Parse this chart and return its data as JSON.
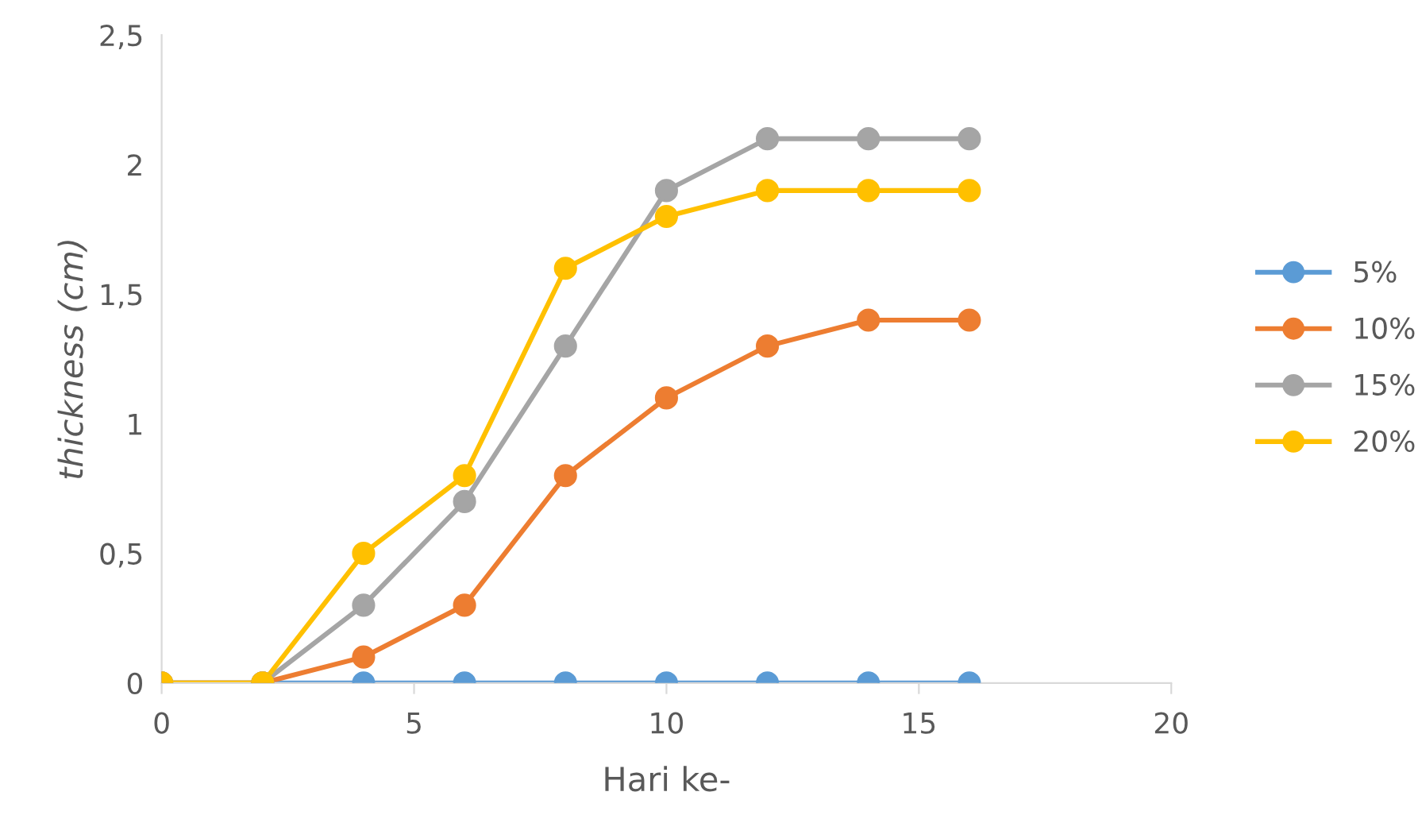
{
  "chart_data": {
    "type": "line",
    "xlabel": "Hari ke-",
    "ylabel": "thickness (cm)",
    "x": [
      0,
      2,
      4,
      6,
      8,
      10,
      12,
      14,
      16
    ],
    "series": [
      {
        "name": "5%",
        "color": "#5b9bd5",
        "values": [
          0,
          0,
          0,
          0,
          0,
          0,
          0,
          0,
          0
        ]
      },
      {
        "name": "10%",
        "color": "#ed7d31",
        "values": [
          0,
          0,
          0.1,
          0.3,
          0.8,
          1.1,
          1.3,
          1.4,
          1.4
        ]
      },
      {
        "name": "15%",
        "color": "#a5a5a5",
        "values": [
          0,
          0,
          0.3,
          0.7,
          1.3,
          1.9,
          2.1,
          2.1,
          2.1
        ]
      },
      {
        "name": "20%",
        "color": "#ffc000",
        "values": [
          0,
          0,
          0.5,
          0.8,
          1.6,
          1.8,
          1.9,
          1.9,
          1.9
        ]
      }
    ],
    "xlim": [
      0,
      20
    ],
    "xticks": [
      0,
      5,
      10,
      15,
      20
    ],
    "ylim": [
      0,
      2.5
    ],
    "yticks": [
      0,
      {
        "value": 0.5,
        "label": "0,5"
      },
      1,
      {
        "value": 1.5,
        "label": "1,5"
      },
      2,
      {
        "value": 2.5,
        "label": "2,5"
      }
    ],
    "grid": false,
    "legend": "right",
    "marker": "circle",
    "line_style": "solid"
  }
}
